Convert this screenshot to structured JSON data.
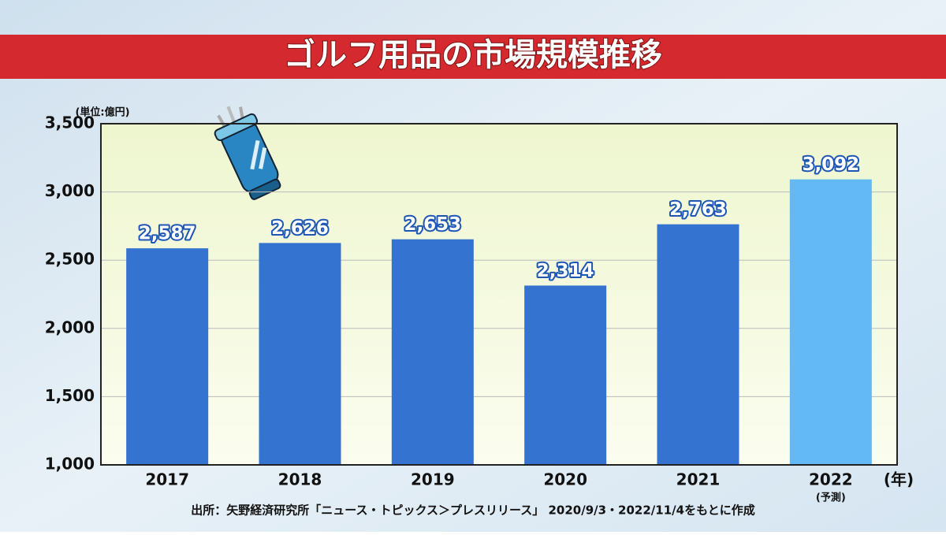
{
  "chart_data": {
    "type": "bar",
    "title": "ゴルフ用品の市場規模推移",
    "y_unit": "(単位:億円)",
    "x_unit": "(年)",
    "forecast_note": "(予測)",
    "source": "出所：矢野経済研究所「ニュース・トピックス＞プレスリリース」 2020/9/3・2022/11/4をもとに作成",
    "categories": [
      "2017",
      "2018",
      "2019",
      "2020",
      "2021",
      "2022"
    ],
    "values": [
      2587,
      2626,
      2653,
      2314,
      2763,
      3092
    ],
    "value_labels": [
      "2,587",
      "2,626",
      "2,653",
      "2,314",
      "2,763",
      "3,092"
    ],
    "colors": [
      "#3473cf",
      "#3473cf",
      "#3473cf",
      "#3473cf",
      "#3473cf",
      "#63b9f6"
    ],
    "ylim": [
      1000,
      3500
    ],
    "yticks": [
      {
        "value": 1000,
        "label": "1,000"
      },
      {
        "value": 1500,
        "label": "1,500"
      },
      {
        "value": 2000,
        "label": "2,000"
      },
      {
        "value": 2500,
        "label": "2,500"
      },
      {
        "value": 3000,
        "label": "3,000"
      },
      {
        "value": 3500,
        "label": "3,500"
      }
    ],
    "grid": true
  }
}
